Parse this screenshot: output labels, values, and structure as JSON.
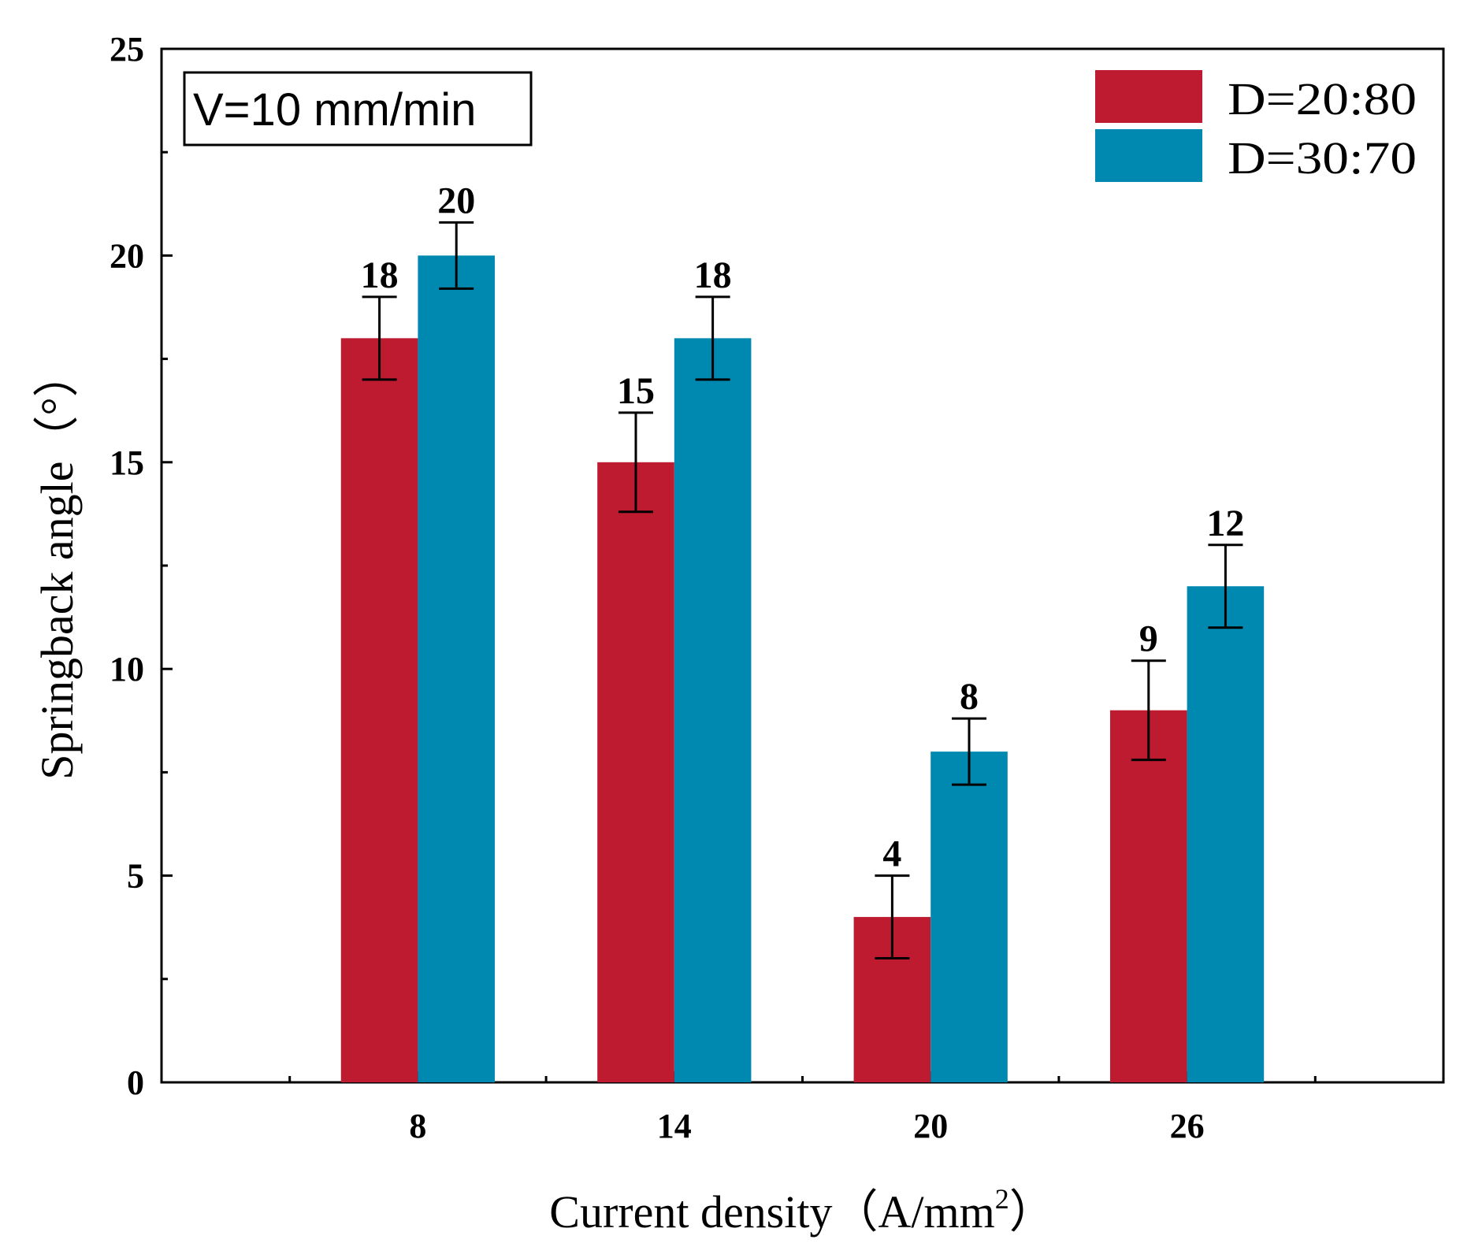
{
  "chart_data": {
    "type": "bar",
    "categories": [
      "8",
      "14",
      "20",
      "26"
    ],
    "series": [
      {
        "name": "D=20:80",
        "color": "#be1a30",
        "values": [
          18,
          15,
          4,
          9
        ],
        "errors": [
          1.0,
          1.2,
          1.0,
          1.2
        ],
        "labels": [
          "18",
          "15",
          "4",
          "9"
        ]
      },
      {
        "name": "D=30:70",
        "color": "#0089b0",
        "values": [
          20,
          18,
          8,
          12
        ],
        "errors": [
          0.8,
          1.0,
          0.8,
          1.0
        ],
        "labels": [
          "20",
          "18",
          "8",
          "12"
        ]
      }
    ],
    "xlabel": "Current density（A/mm",
    "xlabel_sup": "2",
    "xlabel_close": "）",
    "ylabel": "Springback angle（°）",
    "ylim": [
      0,
      25
    ],
    "yticks": [
      "0",
      "5",
      "10",
      "15",
      "20",
      "25"
    ],
    "annotation": "V=10 mm/min",
    "legend_position": "top-right",
    "grid": false
  }
}
